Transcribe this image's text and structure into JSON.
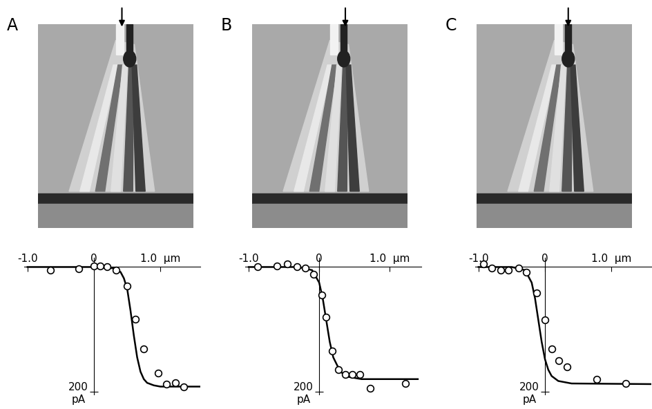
{
  "chart_data": [
    {
      "type": "scatter",
      "title": "A",
      "xlim": [
        -1.05,
        1.6
      ],
      "ylim": [
        205,
        -15
      ],
      "xticks": [
        {
          "value": -1.0,
          "label": "-1.0"
        },
        0,
        {
          "value": 1.0,
          "label": "1.0  µm"
        }
      ],
      "yticks": [
        {
          "value": 200,
          "label": "200\npA"
        }
      ],
      "series": [
        {
          "type": "scatter",
          "marker": "o",
          "color": "#000000",
          "x": [
            -0.66,
            -0.23,
            0.0,
            0.09,
            0.2,
            0.33,
            0.5,
            0.62,
            0.75,
            0.97,
            1.09,
            1.23,
            1.35
          ],
          "values": [
            5,
            3,
            -2,
            -2,
            0,
            5,
            30,
            84,
            132,
            170,
            188,
            186,
            192
          ]
        },
        {
          "type": "line",
          "line_style": "solid",
          "color": "#000000",
          "x": [
            -1.0,
            0.0,
            0.3,
            0.4,
            0.45,
            0.5,
            0.55,
            0.6,
            0.65,
            0.7,
            0.75,
            0.8,
            0.9,
            1.0,
            1.6
          ],
          "values": [
            0,
            0,
            2,
            8,
            18,
            35,
            70,
            110,
            145,
            168,
            180,
            186,
            190,
            192,
            192
          ]
        }
      ]
    },
    {
      "type": "scatter",
      "title": "B",
      "xlim": [
        -1.05,
        1.45
      ],
      "ylim": [
        205,
        -15
      ],
      "xticks": [
        {
          "value": -1.0,
          "label": "-1.0"
        },
        0,
        {
          "value": 1.0,
          "label": "1.0  µm"
        }
      ],
      "yticks": [
        {
          "value": 200,
          "label": "200\npA"
        }
      ],
      "series": [
        {
          "type": "scatter",
          "marker": "o",
          "color": "#000000",
          "x": [
            -0.87,
            -0.6,
            -0.45,
            -0.31,
            -0.2,
            -0.08,
            0.04,
            0.1,
            0.19,
            0.27,
            0.37,
            0.47,
            0.58,
            0.72,
            1.22
          ],
          "values": [
            0,
            -2,
            -5,
            0,
            2,
            12,
            45,
            80,
            135,
            165,
            172,
            172,
            172,
            195,
            187
          ]
        },
        {
          "type": "line",
          "line_style": "solid",
          "color": "#000000",
          "x": [
            -1.0,
            -0.3,
            -0.1,
            0.0,
            0.05,
            0.1,
            0.15,
            0.2,
            0.3,
            0.4,
            0.6,
            1.4
          ],
          "values": [
            0,
            0,
            5,
            25,
            50,
            85,
            120,
            145,
            168,
            176,
            180,
            180
          ]
        }
      ]
    },
    {
      "type": "scatter",
      "title": "C",
      "xlim": [
        -1.05,
        1.6
      ],
      "ylim": [
        205,
        -15
      ],
      "xticks": [
        {
          "value": -1.0,
          "label": "-1.0"
        },
        0,
        {
          "value": 1.0,
          "label": "1.0  µm"
        }
      ],
      "yticks": [
        {
          "value": 200,
          "label": "200\npA"
        }
      ],
      "series": [
        {
          "type": "scatter",
          "marker": "o",
          "color": "#000000",
          "x": [
            -0.93,
            -0.8,
            -0.67,
            -0.55,
            -0.4,
            -0.28,
            -0.13,
            0.0,
            0.1,
            0.21,
            0.33,
            0.78,
            1.22
          ],
          "values": [
            -5,
            2,
            5,
            5,
            2,
            8,
            42,
            85,
            132,
            150,
            160,
            180,
            187
          ]
        },
        {
          "type": "line",
          "line_style": "solid",
          "color": "#000000",
          "x": [
            -1.0,
            -0.5,
            -0.3,
            -0.2,
            -0.15,
            -0.1,
            -0.05,
            0.0,
            0.05,
            0.1,
            0.2,
            0.4,
            1.6
          ],
          "values": [
            0,
            0,
            5,
            25,
            50,
            85,
            120,
            148,
            165,
            175,
            183,
            187,
            188
          ]
        }
      ]
    }
  ]
}
